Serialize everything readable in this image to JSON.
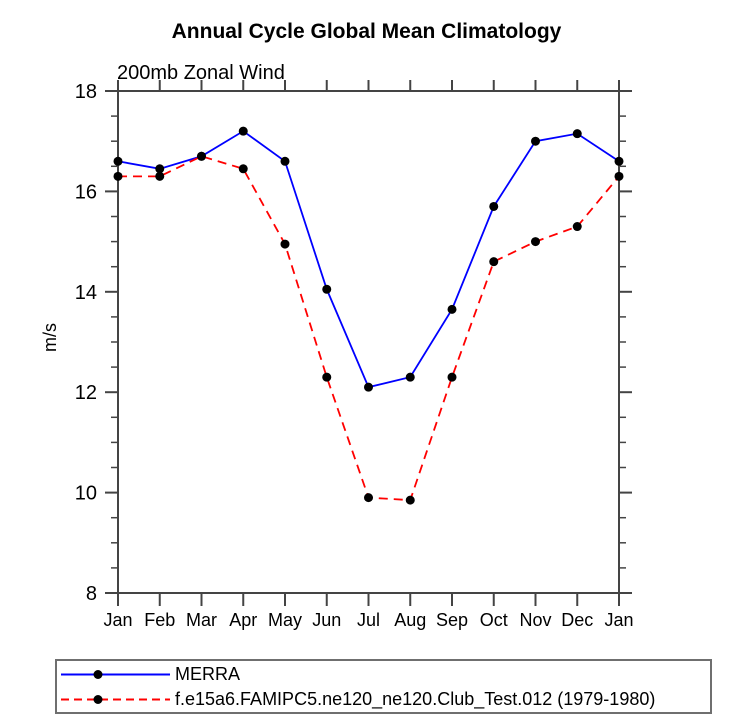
{
  "chart_data": {
    "type": "line",
    "title": "Annual Cycle Global Mean Climatology",
    "subtitle": "200mb Zonal Wind",
    "xlabel": "",
    "ylabel": "m/s",
    "categories": [
      "Jan",
      "Feb",
      "Mar",
      "Apr",
      "May",
      "Jun",
      "Jul",
      "Aug",
      "Sep",
      "Oct",
      "Nov",
      "Dec",
      "Jan"
    ],
    "ylim": [
      8,
      18
    ],
    "yticks": [
      8,
      10,
      12,
      14,
      16,
      18
    ],
    "minor_tick_interval": 0.5,
    "grid": false,
    "legend_position": "bottom-left-box",
    "axis_color": "#444444",
    "marker": "filled-circle",
    "marker_color": "#000000",
    "series": [
      {
        "name": "MERRA",
        "color": "#0000ff",
        "style": "solid",
        "values": [
          16.6,
          16.45,
          16.7,
          17.2,
          16.6,
          14.05,
          12.1,
          12.3,
          13.65,
          15.7,
          17.0,
          17.15,
          16.6
        ]
      },
      {
        "name": "f.e15a6.FAMIPC5.ne120_ne120.Club_Test.012 (1979-1980)",
        "color": "#ff0000",
        "style": "dashed",
        "values": [
          16.3,
          16.3,
          16.7,
          16.45,
          14.95,
          12.3,
          9.9,
          9.85,
          12.3,
          14.6,
          15.0,
          15.3,
          16.3
        ]
      }
    ]
  }
}
